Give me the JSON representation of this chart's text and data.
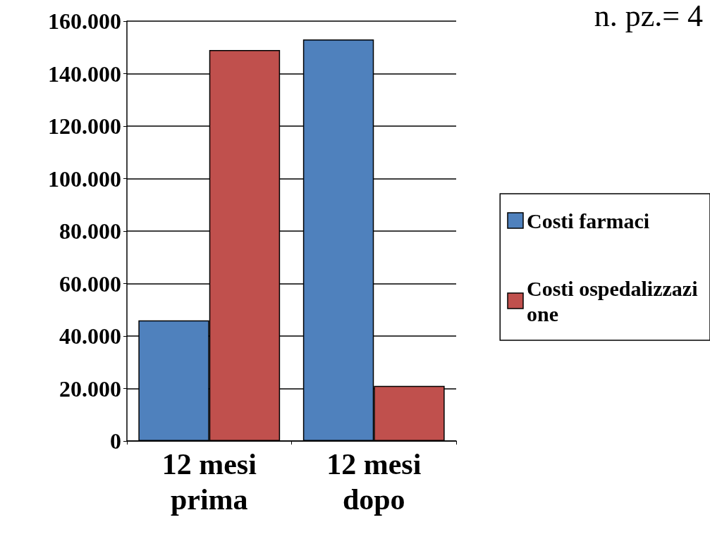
{
  "chart_data": {
    "type": "bar",
    "annotations": [
      "n. pz.= 4"
    ],
    "categories": [
      "12 mesi prima",
      "12 mesi dopo"
    ],
    "series": [
      {
        "name": "Costi farmaci",
        "color": "#4f81bd",
        "values": [
          46000,
          153000
        ]
      },
      {
        "name": "Costi ospedalizzazione",
        "color": "#c0504d",
        "values": [
          149000,
          21000
        ]
      }
    ],
    "ylim": [
      0,
      160000
    ],
    "yticks": [
      {
        "value": 0,
        "label": "0"
      },
      {
        "value": 20000,
        "label": "20.000"
      },
      {
        "value": 40000,
        "label": "40.000"
      },
      {
        "value": 60000,
        "label": "60.000"
      },
      {
        "value": 80000,
        "label": "80.000"
      },
      {
        "value": 100000,
        "label": "100.000"
      },
      {
        "value": 120000,
        "label": "120.000"
      },
      {
        "value": 140000,
        "label": "140.000"
      },
      {
        "value": 160000,
        "label": "160.000"
      }
    ],
    "grid": "y",
    "legend": "right"
  }
}
